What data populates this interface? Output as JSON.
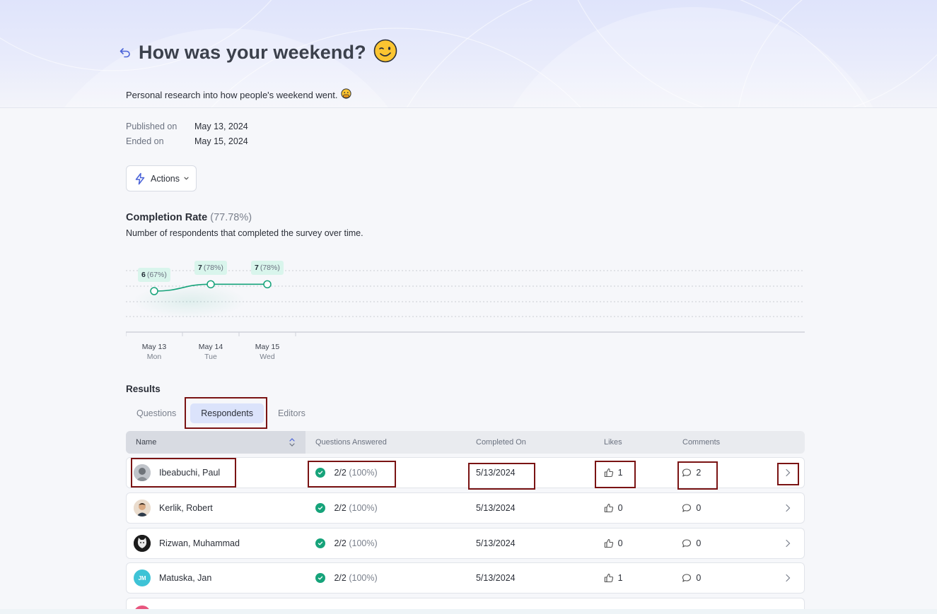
{
  "survey": {
    "title": "How was your weekend?",
    "title_emoji": "wink-emoji",
    "description": "Personal research into how people's weekend went.",
    "description_emoji": "face-with-hand-emoji",
    "published_label": "Published on",
    "published_value": "May 13, 2024",
    "ended_label": "Ended on",
    "ended_value": "May 15, 2024"
  },
  "actions": {
    "label": "Actions"
  },
  "completion": {
    "title": "Completion Rate",
    "percent": "(77.78%)",
    "description": "Number of respondents that completed the survey over time."
  },
  "chart_data": {
    "type": "line",
    "x": [
      "May 13",
      "May 14",
      "May 15"
    ],
    "x_sub": [
      "Mon",
      "Tue",
      "Wed"
    ],
    "values": [
      6,
      7,
      7
    ],
    "value_labels": [
      "(67%)",
      "(78%)",
      "(78%)"
    ],
    "ylim": [
      0,
      9
    ],
    "grid": true,
    "color": "#16a37a"
  },
  "results": {
    "title": "Results",
    "tabs": [
      "Questions",
      "Respondents",
      "Editors"
    ],
    "active_tab": "Respondents",
    "columns": {
      "name": "Name",
      "questions": "Questions Answered",
      "completed": "Completed On",
      "likes": "Likes",
      "comments": "Comments"
    },
    "rows": [
      {
        "name": "Ibeabuchi, Paul",
        "answered": "2/2",
        "pct": "(100%)",
        "completed": "5/13/2024",
        "likes": "1",
        "comments": "2",
        "avatar": "photo-avatar-gray"
      },
      {
        "name": "Kerlik, Robert",
        "answered": "2/2",
        "pct": "(100%)",
        "completed": "5/13/2024",
        "likes": "0",
        "comments": "0",
        "avatar": "photo-avatar-man"
      },
      {
        "name": "Rizwan, Muhammad",
        "answered": "2/2",
        "pct": "(100%)",
        "completed": "5/13/2024",
        "likes": "0",
        "comments": "0",
        "avatar": "photo-avatar-cat"
      },
      {
        "name": "Matuska, Jan",
        "answered": "2/2",
        "pct": "(100%)",
        "completed": "5/13/2024",
        "likes": "1",
        "comments": "0",
        "avatar_initials": "JM",
        "avatar_color": "#3ec3d6"
      }
    ],
    "partial_row_avatar_color": "#e8557e"
  }
}
